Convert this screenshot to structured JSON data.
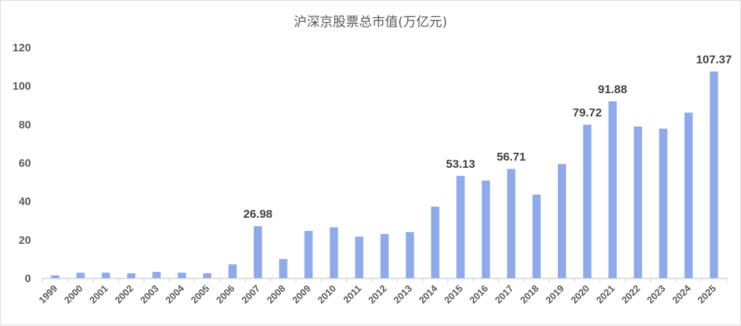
{
  "title": "沪深京股票总市值(万亿元)",
  "colors": {
    "bar": "#8eaaeb",
    "axis": "#d9d9d9",
    "text": "#595959",
    "label": "#404040"
  },
  "chart_data": {
    "type": "bar",
    "title": "沪深京股票总市值(万亿元)",
    "xlabel": "",
    "ylabel": "",
    "ylim": [
      0,
      120
    ],
    "yticks": [
      0,
      20,
      40,
      60,
      80,
      100,
      120
    ],
    "grid": false,
    "legend": null,
    "categories": [
      "1999",
      "2000",
      "2001",
      "2002",
      "2003",
      "2004",
      "2005",
      "2006",
      "2007",
      "2008",
      "2009",
      "2010",
      "2011",
      "2012",
      "2013",
      "2014",
      "2015",
      "2016",
      "2017",
      "2018",
      "2019",
      "2020",
      "2021",
      "2022",
      "2023",
      "2024",
      "2025"
    ],
    "values": [
      1.4,
      2.8,
      2.8,
      2.5,
      3.2,
      2.8,
      2.5,
      7.1,
      26.98,
      9.9,
      24.5,
      26.4,
      21.5,
      22.9,
      23.9,
      37.1,
      53.13,
      50.7,
      56.71,
      43.4,
      59.3,
      79.72,
      91.88,
      78.8,
      77.7,
      86.0,
      107.37
    ],
    "annotations": [
      {
        "category": "2007",
        "text": "26.98"
      },
      {
        "category": "2015",
        "text": "53.13"
      },
      {
        "category": "2017",
        "text": "56.71"
      },
      {
        "category": "2020",
        "text": "79.72"
      },
      {
        "category": "2021",
        "text": "91.88"
      },
      {
        "category": "2025",
        "text": "107.37"
      }
    ]
  }
}
